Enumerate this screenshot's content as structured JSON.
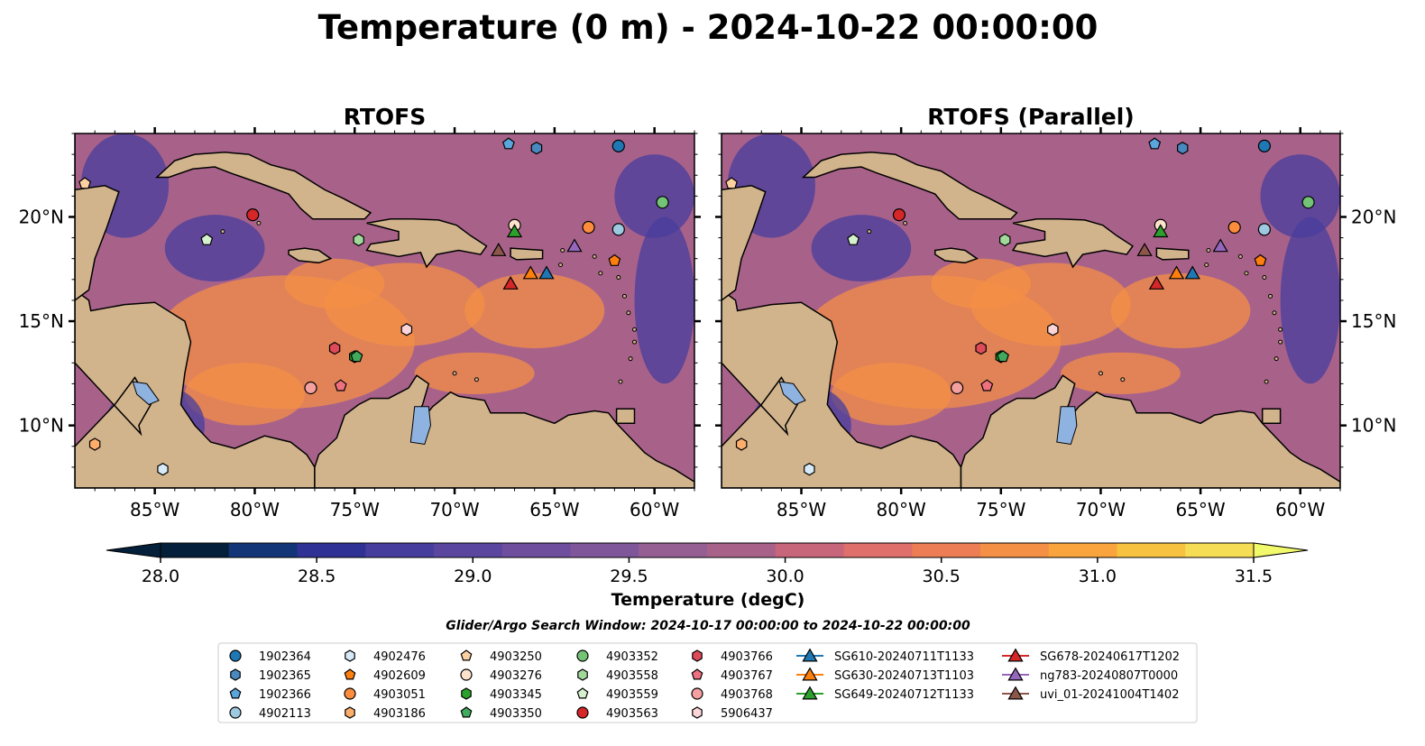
{
  "figure": {
    "title": "Temperature (0 m) - 2024-10-22 00:00:00",
    "search_window": "Glider/Argo Search Window: 2024-10-17 00:00:00 to 2024-10-22 00:00:00"
  },
  "chart_data": [
    {
      "type": "heatmap",
      "title": "RTOFS",
      "variable": "Temperature (0 m)",
      "x_range": [
        -89,
        -58
      ],
      "y_range": [
        7,
        24
      ],
      "x_ticks": [
        "85°W",
        "80°W",
        "75°W",
        "70°W",
        "65°W",
        "60°W"
      ],
      "y_ticks": [
        "20°N",
        "15°N",
        "10°N"
      ],
      "y_tick_side": "left"
    },
    {
      "type": "heatmap",
      "title": "RTOFS (Parallel)",
      "variable": "Temperature (0 m)",
      "x_range": [
        -89,
        -58
      ],
      "y_range": [
        7,
        24
      ],
      "x_ticks": [
        "85°W",
        "80°W",
        "75°W",
        "70°W",
        "65°W",
        "60°W"
      ],
      "y_ticks": [
        "20°N",
        "15°N",
        "10°N"
      ],
      "y_tick_side": "right"
    }
  ],
  "colorbar": {
    "label": "Temperature (degC)",
    "min": 28.0,
    "max": 31.5,
    "step": 0.25,
    "extend": "both",
    "ticks": [
      "28.0",
      "28.5",
      "29.0",
      "29.5",
      "30.0",
      "30.5",
      "31.0",
      "31.5"
    ],
    "colors": [
      "#041f3a",
      "#123578",
      "#2f3194",
      "#473d9c",
      "#5a469e",
      "#6e4e9d",
      "#80569a",
      "#955f94",
      "#a8628a",
      "#c7667b",
      "#df6f6a",
      "#ec7d55",
      "#f48f46",
      "#f9a43c",
      "#f7c23f",
      "#f6dd56"
    ],
    "under_color": "#041f3a",
    "over_color": "#f2fa6c"
  },
  "colors": {
    "land": "#d2b48c",
    "lake": "#8fb3e0",
    "sea": "#a8628a",
    "warm": "#f48f46",
    "cool": "#473d9c"
  },
  "legend": [
    {
      "label": "1902364",
      "marker": "circle",
      "color": "#1f77b4"
    },
    {
      "label": "1902365",
      "marker": "hexagon",
      "color": "#4a88c0"
    },
    {
      "label": "1902366",
      "marker": "pentagon",
      "color": "#5aa5dc"
    },
    {
      "label": "4902113",
      "marker": "circle",
      "color": "#9ecae1"
    },
    {
      "label": "4902476",
      "marker": "hexagon",
      "color": "#d6eaf7"
    },
    {
      "label": "4902609",
      "marker": "pentagon",
      "color": "#ff7f0e"
    },
    {
      "label": "4903051",
      "marker": "circle",
      "color": "#fd8d3c"
    },
    {
      "label": "4903186",
      "marker": "hexagon",
      "color": "#fdae6b"
    },
    {
      "label": "4903250",
      "marker": "pentagon",
      "color": "#fdd0a2"
    },
    {
      "label": "4903276",
      "marker": "circle",
      "color": "#fde3cb"
    },
    {
      "label": "4903345",
      "marker": "hexagon",
      "color": "#2ca02c"
    },
    {
      "label": "4903350",
      "marker": "pentagon",
      "color": "#41ab5d"
    },
    {
      "label": "4903352",
      "marker": "circle",
      "color": "#74c476"
    },
    {
      "label": "4903558",
      "marker": "hexagon",
      "color": "#a1d99b"
    },
    {
      "label": "4903559",
      "marker": "pentagon",
      "color": "#d5f2cf"
    },
    {
      "label": "4903563",
      "marker": "circle",
      "color": "#d62728"
    },
    {
      "label": "4903766",
      "marker": "hexagon",
      "color": "#de4a58"
    },
    {
      "label": "4903767",
      "marker": "pentagon",
      "color": "#ef7180"
    },
    {
      "label": "4903768",
      "marker": "circle",
      "color": "#f4a0a0"
    },
    {
      "label": "5906437",
      "marker": "hexagon",
      "color": "#fcd5d8"
    },
    {
      "label": "SG610-20240711T1133",
      "marker": "triangle-line",
      "color": "#1f77b4"
    },
    {
      "label": "SG630-20240713T1103",
      "marker": "triangle-line",
      "color": "#ff7f0e"
    },
    {
      "label": "SG649-20240712T1133",
      "marker": "triangle-line",
      "color": "#2ca02c"
    },
    {
      "label": "SG678-20240617T1202",
      "marker": "triangle-line",
      "color": "#d62728"
    },
    {
      "label": "ng783-20240807T0000",
      "marker": "triangle-line",
      "color": "#9467bd"
    },
    {
      "label": "uvi_01-20241004T1402",
      "marker": "triangle-line",
      "color": "#8c564b"
    }
  ],
  "observations": [
    {
      "id": "1902364",
      "lon": -61.8,
      "lat": 23.4
    },
    {
      "id": "1902365",
      "lon": -65.9,
      "lat": 23.3
    },
    {
      "id": "1902366",
      "lon": -67.3,
      "lat": 23.5
    },
    {
      "id": "4902113",
      "lon": -61.8,
      "lat": 19.4
    },
    {
      "id": "4902476",
      "lon": -84.6,
      "lat": 7.9
    },
    {
      "id": "4902609",
      "lon": -62.0,
      "lat": 17.9
    },
    {
      "id": "4903051",
      "lon": -63.3,
      "lat": 19.5
    },
    {
      "id": "4903186",
      "lon": -88.0,
      "lat": 9.1
    },
    {
      "id": "4903250",
      "lon": -88.5,
      "lat": 21.6
    },
    {
      "id": "4903276",
      "lon": -67.0,
      "lat": 19.6
    },
    {
      "id": "4903345",
      "lon": -75.0,
      "lat": 13.3
    },
    {
      "id": "4903350",
      "lon": -74.9,
      "lat": 13.3
    },
    {
      "id": "4903352",
      "lon": -59.6,
      "lat": 20.7
    },
    {
      "id": "4903558",
      "lon": -74.8,
      "lat": 18.9
    },
    {
      "id": "4903559",
      "lon": -82.4,
      "lat": 18.9
    },
    {
      "id": "4903563",
      "lon": -80.1,
      "lat": 20.1
    },
    {
      "id": "4903766",
      "lon": -76.0,
      "lat": 13.7
    },
    {
      "id": "4903767",
      "lon": -75.7,
      "lat": 11.9
    },
    {
      "id": "4903768",
      "lon": -77.2,
      "lat": 11.8
    },
    {
      "id": "5906437",
      "lon": -72.4,
      "lat": 14.6
    },
    {
      "id": "SG610-20240711T1133",
      "lon": -65.4,
      "lat": 17.3
    },
    {
      "id": "SG630-20240713T1103",
      "lon": -66.2,
      "lat": 17.3
    },
    {
      "id": "SG649-20240712T1133",
      "lon": -67.0,
      "lat": 19.3
    },
    {
      "id": "SG678-20240617T1202",
      "lon": -67.2,
      "lat": 16.8
    },
    {
      "id": "ng783-20240807T0000",
      "lon": -64.0,
      "lat": 18.6
    },
    {
      "id": "uvi_01-20241004T1402",
      "lon": -67.8,
      "lat": 18.4
    }
  ]
}
